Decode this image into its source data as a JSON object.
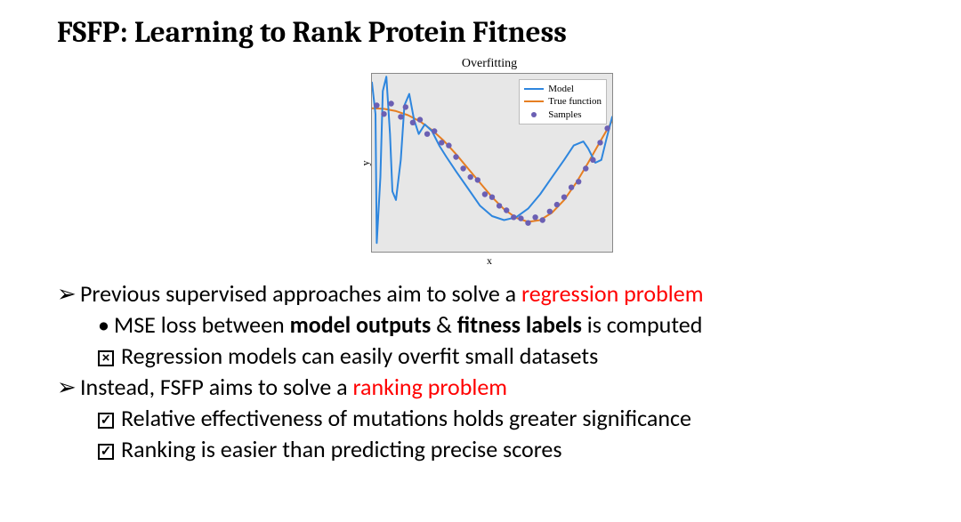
{
  "title": "FSFP: Learning to Rank Protein Fitness",
  "chart": {
    "type": "line+scatter",
    "title": "Overfitting",
    "x_label": "x",
    "y_label": "y",
    "background_color": "#e7e7e7",
    "border_color": "#888888",
    "xlim": [
      0,
      1
    ],
    "ylim": [
      -1.5,
      1.6
    ],
    "model": {
      "label": "Model",
      "color": "#2e86de",
      "width": 2.0,
      "points": [
        [
          0.0,
          1.45
        ],
        [
          0.015,
          0.9
        ],
        [
          0.02,
          -1.35
        ],
        [
          0.035,
          -0.2
        ],
        [
          0.045,
          1.3
        ],
        [
          0.06,
          1.55
        ],
        [
          0.075,
          0.55
        ],
        [
          0.085,
          -0.45
        ],
        [
          0.1,
          -0.6
        ],
        [
          0.12,
          0.1
        ],
        [
          0.135,
          1.05
        ],
        [
          0.155,
          1.25
        ],
        [
          0.175,
          0.8
        ],
        [
          0.195,
          0.55
        ],
        [
          0.22,
          0.72
        ],
        [
          0.25,
          0.6
        ],
        [
          0.28,
          0.35
        ],
        [
          0.31,
          0.15
        ],
        [
          0.35,
          -0.1
        ],
        [
          0.4,
          -0.4
        ],
        [
          0.45,
          -0.7
        ],
        [
          0.5,
          -0.88
        ],
        [
          0.55,
          -0.95
        ],
        [
          0.6,
          -0.9
        ],
        [
          0.65,
          -0.75
        ],
        [
          0.7,
          -0.5
        ],
        [
          0.75,
          -0.2
        ],
        [
          0.8,
          0.1
        ],
        [
          0.84,
          0.35
        ],
        [
          0.88,
          0.42
        ],
        [
          0.9,
          0.3
        ],
        [
          0.93,
          0.05
        ],
        [
          0.955,
          0.1
        ],
        [
          0.975,
          0.45
        ],
        [
          1.0,
          0.85
        ]
      ]
    },
    "true_fn": {
      "label": "True function",
      "color": "#e67e22",
      "width": 2.0,
      "points": [
        [
          0.0,
          1.0
        ],
        [
          0.05,
          0.99
        ],
        [
          0.1,
          0.95
        ],
        [
          0.15,
          0.88
        ],
        [
          0.2,
          0.77
        ],
        [
          0.25,
          0.62
        ],
        [
          0.3,
          0.43
        ],
        [
          0.35,
          0.2
        ],
        [
          0.4,
          -0.05
        ],
        [
          0.45,
          -0.3
        ],
        [
          0.5,
          -0.55
        ],
        [
          0.55,
          -0.76
        ],
        [
          0.6,
          -0.91
        ],
        [
          0.65,
          -0.98
        ],
        [
          0.7,
          -0.95
        ],
        [
          0.75,
          -0.82
        ],
        [
          0.8,
          -0.6
        ],
        [
          0.85,
          -0.3
        ],
        [
          0.9,
          0.05
        ],
        [
          0.95,
          0.42
        ],
        [
          1.0,
          0.78
        ]
      ]
    },
    "samples": {
      "label": "Samples",
      "color": "#6b5fb3",
      "radius": 3.2,
      "points": [
        [
          0.02,
          1.05
        ],
        [
          0.05,
          0.9
        ],
        [
          0.08,
          1.08
        ],
        [
          0.12,
          0.85
        ],
        [
          0.14,
          1.02
        ],
        [
          0.17,
          0.75
        ],
        [
          0.2,
          0.8
        ],
        [
          0.23,
          0.55
        ],
        [
          0.26,
          0.6
        ],
        [
          0.29,
          0.4
        ],
        [
          0.32,
          0.35
        ],
        [
          0.35,
          0.15
        ],
        [
          0.38,
          -0.05
        ],
        [
          0.41,
          -0.2
        ],
        [
          0.44,
          -0.25
        ],
        [
          0.47,
          -0.5
        ],
        [
          0.5,
          -0.55
        ],
        [
          0.53,
          -0.7
        ],
        [
          0.56,
          -0.78
        ],
        [
          0.59,
          -0.9
        ],
        [
          0.62,
          -0.92
        ],
        [
          0.65,
          -1.0
        ],
        [
          0.68,
          -0.9
        ],
        [
          0.71,
          -0.95
        ],
        [
          0.74,
          -0.8
        ],
        [
          0.77,
          -0.68
        ],
        [
          0.8,
          -0.55
        ],
        [
          0.83,
          -0.38
        ],
        [
          0.86,
          -0.28
        ],
        [
          0.89,
          -0.05
        ],
        [
          0.92,
          0.1
        ],
        [
          0.95,
          0.4
        ],
        [
          0.98,
          0.65
        ]
      ]
    }
  },
  "bullets": {
    "b1": {
      "pre": "Previous supervised approaches aim to solve a ",
      "hl": "regression problem"
    },
    "b1a": {
      "pre": "MSE loss between ",
      "bold1": "model outputs",
      "mid": " & ",
      "bold2": "fitness labels",
      "post": " is computed"
    },
    "b1b": "Regression models can easily overfit small datasets",
    "b2": {
      "pre": "Instead, FSFP aims to solve a ",
      "hl": "ranking problem"
    },
    "b2a": "Relative effectiveness of mutations holds greater significance",
    "b2b": "Ranking is easier than predicting precise scores"
  }
}
